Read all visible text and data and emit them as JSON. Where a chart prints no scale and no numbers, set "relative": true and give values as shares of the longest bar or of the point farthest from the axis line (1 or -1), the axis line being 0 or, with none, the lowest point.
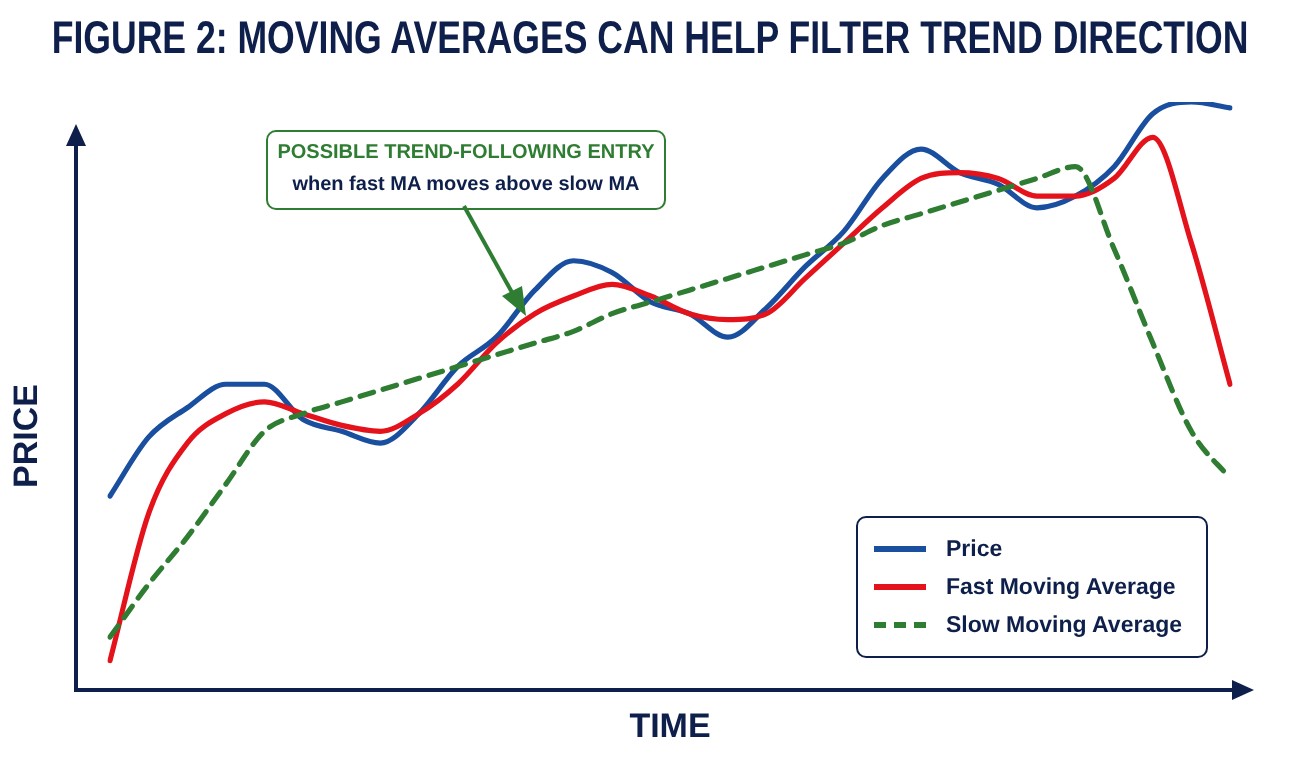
{
  "chart_data": {
    "type": "line",
    "title": "FIGURE 2: MOVING AVERAGES CAN HELP FILTER TREND DIRECTION",
    "xlabel": "TIME",
    "ylabel": "PRICE",
    "relative": true,
    "marker": "none",
    "grid": false,
    "legend": "bottom right",
    "annotations": [
      "POSSIBLE TREND-FOLLOWING ENTRY",
      "when fast MA moves above slow MA"
    ],
    "categories": [
      null,
      null,
      null,
      null,
      null,
      null,
      null,
      null,
      null,
      null,
      null,
      null,
      null,
      null,
      null,
      null,
      null,
      null,
      null,
      null,
      null,
      null,
      null,
      null,
      null,
      null,
      null,
      null,
      null,
      null
    ],
    "series": [
      {
        "name": "Price",
        "color": "#1a4fa0",
        "line_style": "solid",
        "values": [
          0.33,
          0.43,
          0.48,
          0.52,
          0.52,
          0.46,
          0.44,
          0.42,
          0.47,
          0.55,
          0.6,
          0.68,
          0.73,
          0.71,
          0.66,
          0.64,
          0.6,
          0.65,
          0.72,
          0.78,
          0.87,
          0.92,
          0.88,
          0.86,
          0.82,
          0.84,
          0.89,
          0.98,
          1.0,
          0.99
        ]
      },
      {
        "name": "Fast Moving Average",
        "color": "#e4121b",
        "line_style": "solid",
        "values": [
          0.05,
          0.3,
          0.42,
          0.47,
          0.49,
          0.47,
          0.45,
          0.44,
          0.47,
          0.52,
          0.59,
          0.64,
          0.67,
          0.69,
          0.67,
          0.64,
          0.63,
          0.64,
          0.7,
          0.76,
          0.82,
          0.87,
          0.88,
          0.87,
          0.84,
          0.84,
          0.87,
          0.94,
          0.76,
          0.52
        ]
      },
      {
        "name": "Slow Moving Average",
        "color": "#2e7d32",
        "line_style": "dashed",
        "values": [
          0.09,
          0.18,
          0.26,
          0.35,
          0.44,
          0.47,
          0.49,
          0.51,
          0.53,
          0.55,
          0.57,
          0.59,
          0.61,
          0.64,
          0.66,
          0.68,
          0.7,
          0.72,
          0.74,
          0.76,
          0.79,
          0.81,
          0.83,
          0.85,
          0.87,
          0.89,
          0.75,
          0.59,
          0.44,
          0.36
        ]
      }
    ]
  }
}
